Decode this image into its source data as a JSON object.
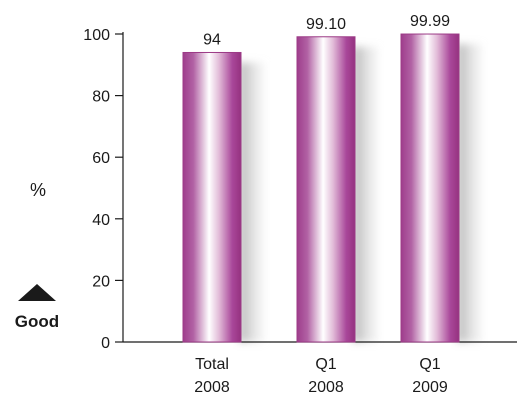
{
  "chart_data": {
    "type": "bar",
    "categories": [
      [
        "Total",
        "2008"
      ],
      [
        "Q1",
        "2008"
      ],
      [
        "Q1",
        "2009"
      ]
    ],
    "values": [
      94,
      99.1,
      99.99
    ],
    "value_labels": [
      "94",
      "99.10",
      "99.99"
    ],
    "ylabel": "%",
    "ylim": [
      0,
      100
    ],
    "yticks": [
      0,
      20,
      40,
      60,
      80,
      100
    ],
    "grid": false,
    "colors": {
      "bar_edge": "#9c3a86",
      "bar_dark": "#9e3d8c",
      "bar_light": "#ffffff",
      "shadow": "#b0b0b0",
      "axis": "#1a1a1a"
    }
  },
  "indicator": {
    "icon": "triangle-up-icon",
    "label": "Good"
  }
}
